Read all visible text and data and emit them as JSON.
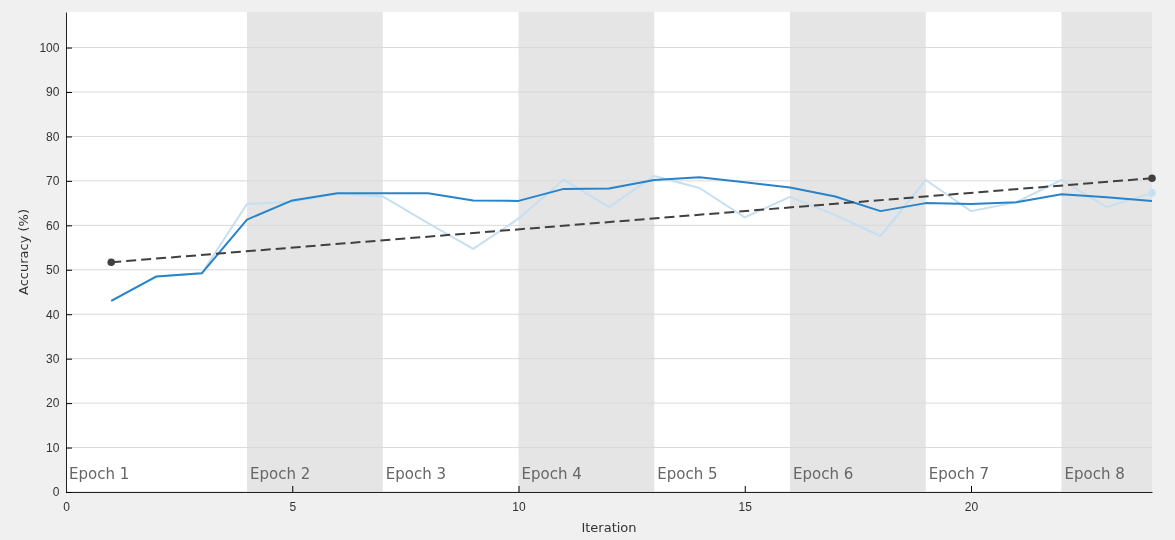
{
  "chart_data": {
    "type": "line",
    "xlabel": "Iteration",
    "ylabel": "Accuracy (%)",
    "xlim": [
      0,
      24
    ],
    "xticks": [
      0,
      5,
      10,
      15,
      20
    ],
    "ylim": [
      0,
      108
    ],
    "yticks": [
      0,
      10,
      20,
      30,
      40,
      50,
      60,
      70,
      80,
      90,
      100
    ],
    "grid": "y",
    "bands": [
      {
        "axis": "x",
        "from": 4,
        "to": 7,
        "label": "Epoch 2",
        "color": "#e5e5e5"
      },
      {
        "axis": "x",
        "from": 10,
        "to": 13,
        "label": "Epoch 4",
        "color": "#e5e5e5"
      },
      {
        "axis": "x",
        "from": 16,
        "to": 19,
        "label": "Epoch 6",
        "color": "#e5e5e5"
      },
      {
        "axis": "x",
        "from": 22,
        "to": 24,
        "label": "Epoch 8",
        "color": "#e5e5e5"
      }
    ],
    "annotations": [
      "Epoch 1",
      "Epoch 3",
      "Epoch 5",
      "Epoch 7"
    ],
    "series": [
      {
        "color": "#c6dff1",
        "x": [
          1,
          2,
          3,
          4,
          5,
          6,
          7,
          8,
          9,
          10,
          11,
          12,
          13,
          14,
          15,
          16,
          17,
          18,
          19,
          20,
          21,
          22,
          23,
          24
        ],
        "values": [
          43,
          48.5,
          49.2,
          64.8,
          65.3,
          67.2,
          66.5,
          60.5,
          54.7,
          61.5,
          70.3,
          64.1,
          71.1,
          68.4,
          61.8,
          66.4,
          62.3,
          57.6,
          70.2,
          63.2,
          65.2,
          70.2,
          64.1,
          67.3
        ]
      },
      {
        "color": "#2783cb",
        "x": [
          1,
          2,
          3,
          4,
          5,
          6,
          7,
          8,
          9,
          10,
          11,
          12,
          13,
          14,
          15,
          16,
          17,
          18,
          19,
          20,
          21,
          22,
          23,
          24
        ],
        "values": [
          43,
          48.5,
          49.2,
          61.3,
          65.6,
          67.2,
          67.2,
          67.2,
          65.6,
          65.5,
          68.2,
          68.3,
          70.2,
          70.8,
          69.7,
          68.5,
          66.5,
          63.2,
          65,
          64.8,
          65.2,
          67,
          66.3,
          65.5
        ]
      },
      {
        "type": "scatter",
        "color": "#c6dff1",
        "x": [
          24
        ],
        "values": [
          67.3
        ],
        "marker": "circle"
      },
      {
        "color": "#404040",
        "x": [
          1,
          24
        ],
        "values": [
          51.7,
          70.6
        ],
        "line_style": "dashed",
        "marker": "circle"
      }
    ]
  }
}
